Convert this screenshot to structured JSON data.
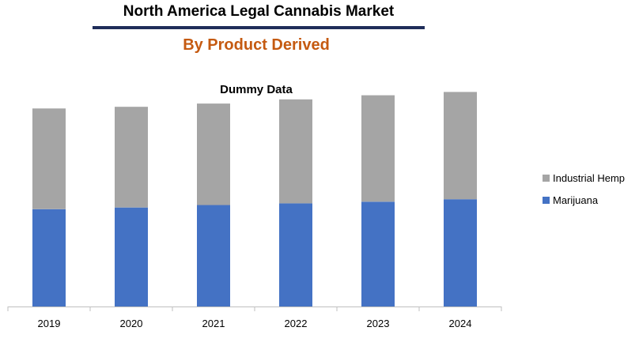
{
  "header": {
    "title": "North America Legal Cannabis Market",
    "subtitle": "By Product Derived",
    "rule_color": "#1f2d5a",
    "subtitle_color": "#c55a11"
  },
  "chart_data": {
    "type": "bar",
    "stacked": true,
    "title": "Dummy Data",
    "categories": [
      "2019",
      "2020",
      "2021",
      "2022",
      "2023",
      "2024"
    ],
    "series": [
      {
        "name": "Marijuana",
        "color": "#4472c4",
        "values": [
          118,
          120,
          123,
          125,
          127,
          130
        ]
      },
      {
        "name": "Industrial Hemp",
        "color": "#a5a5a5",
        "values": [
          122,
          122,
          123,
          126,
          129,
          130
        ]
      }
    ],
    "legend_order": [
      "Industrial Hemp",
      "Marijuana"
    ],
    "legend_position": "right",
    "xlabel": "",
    "ylabel": "",
    "ylim": [
      0,
      270
    ],
    "grid": false
  }
}
